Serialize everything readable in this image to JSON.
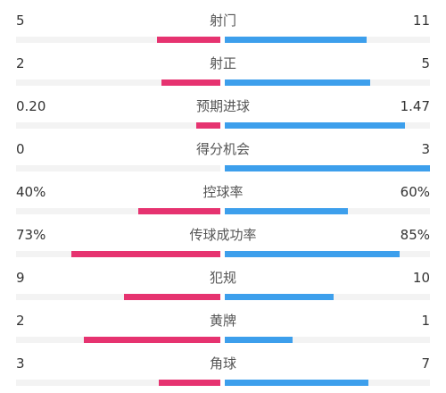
{
  "colors": {
    "left_team": "#e63370",
    "right_team": "#3d9fec",
    "track": "#f3f3f3"
  },
  "chart_data": {
    "type": "bar",
    "orientation": "horizontal-diverging",
    "categories": [
      "射门",
      "射正",
      "预期进球",
      "得分机会",
      "控球率",
      "传球成功率",
      "犯规",
      "黄牌",
      "角球"
    ],
    "rows": [
      {
        "label": "射门",
        "left_label": "5",
        "right_label": "11",
        "left_share": 0.31,
        "right_share": 0.69
      },
      {
        "label": "射正",
        "left_label": "2",
        "right_label": "5",
        "left_share": 0.29,
        "right_share": 0.71
      },
      {
        "label": "预期进球",
        "left_label": "0.20",
        "right_label": "1.47",
        "left_share": 0.12,
        "right_share": 0.88
      },
      {
        "label": "得分机会",
        "left_label": "0",
        "right_label": "3",
        "left_share": 0.0,
        "right_share": 1.0
      },
      {
        "label": "控球率",
        "left_label": "40%",
        "right_label": "60%",
        "left_share": 0.4,
        "right_share": 0.6
      },
      {
        "label": "传球成功率",
        "left_label": "73%",
        "right_label": "85%",
        "left_share": 0.73,
        "right_share": 0.85
      },
      {
        "label": "犯规",
        "left_label": "9",
        "right_label": "10",
        "left_share": 0.47,
        "right_share": 0.53
      },
      {
        "label": "黄牌",
        "left_label": "2",
        "right_label": "1",
        "left_share": 0.67,
        "right_share": 0.33
      },
      {
        "label": "角球",
        "left_label": "3",
        "right_label": "7",
        "left_share": 0.3,
        "right_share": 0.7
      }
    ]
  }
}
